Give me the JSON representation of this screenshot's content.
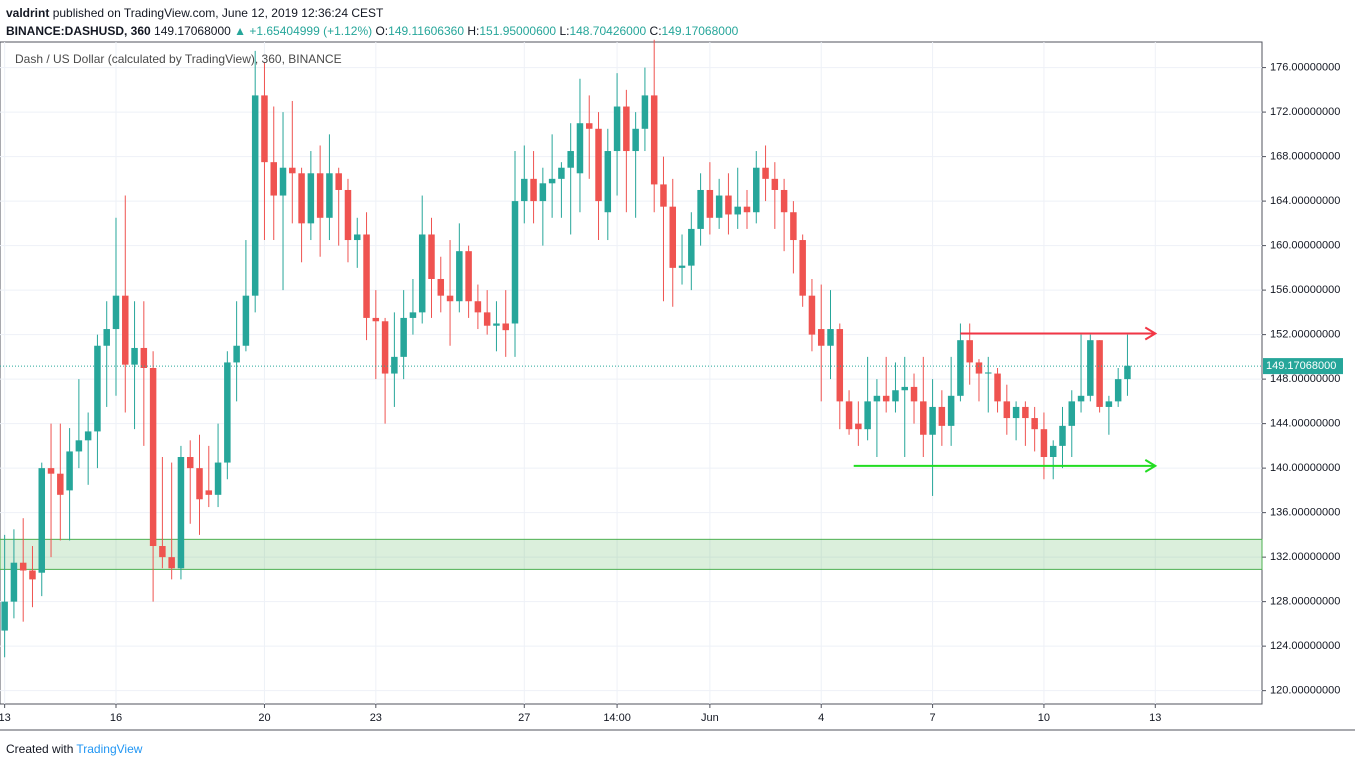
{
  "header": {
    "author": "valdrint",
    "published": "published on TradingView.com, June 12, 2019 12:36:24 CEST",
    "symbol": "BINANCE:DASHUSD, 360",
    "price": "149.17068000",
    "change": "▲ +1.65404999 (+1.12%)",
    "ohlc_labels": [
      "O:",
      "H:",
      "L:",
      "C:"
    ],
    "ohlc_values": [
      "149.11606360",
      "151.95000600",
      "148.70426000",
      "149.17068000"
    ]
  },
  "footer": {
    "text": "Created with",
    "brand": "TradingView"
  },
  "chart_data": {
    "type": "candlestick",
    "title": "Dash / US Dollar (calculated by TradingView), 360, BINANCE",
    "up_color": "#26a69a",
    "down_color": "#ef5350",
    "grid": true,
    "ylim": [
      118.8,
      178.3
    ],
    "yticks": [
      {
        "value": 120,
        "label": "120.00000000"
      },
      {
        "value": 124,
        "label": "124.00000000"
      },
      {
        "value": 128,
        "label": "128.00000000"
      },
      {
        "value": 132,
        "label": "132.00000000"
      },
      {
        "value": 136,
        "label": "136.00000000"
      },
      {
        "value": 140,
        "label": "140.00000000"
      },
      {
        "value": 144,
        "label": "144.00000000"
      },
      {
        "value": 148,
        "label": "148.00000000"
      },
      {
        "value": 152,
        "label": "152.00000000"
      },
      {
        "value": 156,
        "label": "156.00000000"
      },
      {
        "value": 160,
        "label": "160.00000000"
      },
      {
        "value": 164,
        "label": "164.00000000"
      },
      {
        "value": 168,
        "label": "168.00000000"
      },
      {
        "value": 172,
        "label": "172.00000000"
      },
      {
        "value": 176,
        "label": "176.00000000"
      }
    ],
    "xlim": [
      -0.5,
      135.5
    ],
    "xticks": [
      {
        "value": 0,
        "label": "13"
      },
      {
        "value": 12,
        "label": "16"
      },
      {
        "value": 28,
        "label": "20"
      },
      {
        "value": 40,
        "label": "23"
      },
      {
        "value": 56,
        "label": "27"
      },
      {
        "value": 66,
        "label": "14:00"
      },
      {
        "value": 76,
        "label": "Jun"
      },
      {
        "value": 88,
        "label": "4"
      },
      {
        "value": 100,
        "label": "7"
      },
      {
        "value": 112,
        "label": "10"
      },
      {
        "value": 124,
        "label": "13"
      }
    ],
    "last_price": 149.17068,
    "last_price_label": "149.17068000",
    "zone": {
      "color": "#4caf50",
      "low": 130.9,
      "high": 133.6
    },
    "lines": [
      {
        "color": "#f23645",
        "value": 152.1,
        "from": 103,
        "to": 124
      },
      {
        "color": "#22dd22",
        "value": 140.2,
        "from": 91.5,
        "to": 124
      }
    ],
    "candles": [
      [
        125.4,
        134,
        123,
        128
      ],
      [
        128,
        134.5,
        126.5,
        131.5
      ],
      [
        131.5,
        135.5,
        126.2,
        130.8
      ],
      [
        130.8,
        133,
        127.5,
        130
      ],
      [
        130.6,
        140.5,
        128.5,
        140
      ],
      [
        140,
        144,
        132,
        139.5
      ],
      [
        139.5,
        144,
        133.5,
        137.6
      ],
      [
        138,
        143.6,
        133.5,
        141.5
      ],
      [
        141.5,
        148,
        140,
        142.5
      ],
      [
        142.5,
        145,
        138.5,
        143.3
      ],
      [
        143.3,
        152,
        140,
        151
      ],
      [
        151,
        155,
        145.5,
        152.5
      ],
      [
        152.5,
        162.5,
        146.5,
        155.5
      ],
      [
        155.5,
        164.5,
        145,
        149.3
      ],
      [
        149.3,
        155,
        143.5,
        150.8
      ],
      [
        150.8,
        155,
        142,
        149
      ],
      [
        149,
        150.5,
        128,
        133
      ],
      [
        133,
        141,
        131,
        132
      ],
      [
        132,
        140.5,
        130,
        131
      ],
      [
        131,
        142,
        130,
        141
      ],
      [
        141,
        142.5,
        135,
        140
      ],
      [
        140,
        143,
        134,
        137.2
      ],
      [
        138,
        142,
        136.5,
        137.6
      ],
      [
        137.6,
        144,
        136.5,
        140.5
      ],
      [
        140.5,
        150.5,
        139,
        149.5
      ],
      [
        149.5,
        155,
        146,
        151
      ],
      [
        151,
        160.5,
        150.5,
        155.5
      ],
      [
        155.5,
        177.5,
        154,
        173.5
      ],
      [
        173.5,
        176.5,
        160.5,
        167.5
      ],
      [
        167.5,
        172.5,
        160.5,
        164.5
      ],
      [
        164.5,
        172,
        156,
        167
      ],
      [
        167,
        173,
        162,
        166.5
      ],
      [
        166.5,
        167,
        158.5,
        162
      ],
      [
        162,
        168.5,
        160.5,
        166.5
      ],
      [
        166.5,
        169,
        159,
        162.5
      ],
      [
        162.5,
        170,
        160.5,
        166.5
      ],
      [
        166.5,
        167,
        160,
        165
      ],
      [
        165,
        166,
        158.5,
        160.5
      ],
      [
        160.5,
        162.5,
        158,
        161
      ],
      [
        161,
        163,
        151.5,
        153.5
      ],
      [
        153.5,
        156,
        148,
        153.2
      ],
      [
        153.2,
        153.5,
        144,
        148.5
      ],
      [
        148.5,
        154,
        145.5,
        150
      ],
      [
        150,
        156,
        148,
        153.5
      ],
      [
        153.5,
        157,
        152,
        154
      ],
      [
        154,
        164.5,
        153,
        161
      ],
      [
        161,
        162.5,
        153.5,
        157
      ],
      [
        157,
        159,
        154,
        155.5
      ],
      [
        155.5,
        160.5,
        151,
        155
      ],
      [
        155,
        162,
        154,
        159.5
      ],
      [
        159.5,
        160,
        153.5,
        155
      ],
      [
        155,
        156.5,
        152.5,
        154
      ],
      [
        154,
        156,
        152,
        152.8
      ],
      [
        152.8,
        155,
        150.5,
        153
      ],
      [
        153,
        156,
        150,
        152.4
      ],
      [
        153,
        168.5,
        150,
        164
      ],
      [
        164,
        169,
        162,
        166
      ],
      [
        166,
        168.5,
        162,
        164
      ],
      [
        164,
        167,
        160,
        165.6
      ],
      [
        165.6,
        170,
        162.5,
        166
      ],
      [
        166,
        167.5,
        162.5,
        167
      ],
      [
        167,
        171,
        161,
        168.5
      ],
      [
        166.5,
        175,
        163,
        171
      ],
      [
        171,
        173.5,
        166,
        170.5
      ],
      [
        170.5,
        172,
        160.5,
        164
      ],
      [
        163,
        170.5,
        160.5,
        168.5
      ],
      [
        168.5,
        175.5,
        164.5,
        172.5
      ],
      [
        172.5,
        174,
        163,
        168.5
      ],
      [
        168.5,
        172,
        162.5,
        170.5
      ],
      [
        170.5,
        176,
        168.5,
        173.5
      ],
      [
        173.5,
        178.5,
        163,
        165.5
      ],
      [
        165.5,
        168,
        155,
        163.5
      ],
      [
        163.5,
        166,
        154.5,
        158
      ],
      [
        158,
        161,
        156.5,
        158.2
      ],
      [
        158.2,
        163,
        156,
        161.5
      ],
      [
        161.5,
        166.5,
        160,
        165
      ],
      [
        165,
        167.5,
        161,
        162.5
      ],
      [
        162.5,
        166,
        161.5,
        164.5
      ],
      [
        164.5,
        166.5,
        161,
        162.8
      ],
      [
        162.8,
        167,
        161.5,
        163.5
      ],
      [
        163.5,
        165,
        161.5,
        163
      ],
      [
        163,
        168.5,
        162,
        167
      ],
      [
        167,
        169,
        164,
        166
      ],
      [
        166,
        167.5,
        161.5,
        165
      ],
      [
        165,
        166,
        159.5,
        163
      ],
      [
        163,
        164,
        157.5,
        160.5
      ],
      [
        160.5,
        161,
        154.5,
        155.5
      ],
      [
        155.5,
        157,
        150.5,
        152
      ],
      [
        152.5,
        156.5,
        146,
        151
      ],
      [
        151,
        156,
        148,
        152.5
      ],
      [
        152.5,
        153,
        143.5,
        146
      ],
      [
        146,
        147,
        143,
        143.5
      ],
      [
        144,
        146,
        142,
        143.5
      ],
      [
        143.5,
        150,
        142.5,
        146
      ],
      [
        146,
        148,
        141,
        146.5
      ],
      [
        146.5,
        150,
        145,
        146
      ],
      [
        146,
        149.5,
        145,
        147
      ],
      [
        147,
        150,
        141,
        147.3
      ],
      [
        147.3,
        148.5,
        144,
        146
      ],
      [
        146,
        150,
        141,
        143
      ],
      [
        143,
        148,
        137.5,
        145.5
      ],
      [
        145.5,
        147,
        142,
        143.8
      ],
      [
        143.8,
        150,
        142,
        146.5
      ],
      [
        146.5,
        153,
        146,
        151.5
      ],
      [
        151.5,
        153,
        147.5,
        149.5
      ],
      [
        149.5,
        149.8,
        146,
        148.5
      ],
      [
        148.5,
        150,
        145,
        148.6
      ],
      [
        148.5,
        149,
        145,
        146
      ],
      [
        146,
        147.5,
        143,
        144.5
      ],
      [
        144.5,
        146,
        142.5,
        145.5
      ],
      [
        145.5,
        146,
        142,
        144.5
      ],
      [
        144.5,
        145.5,
        141.5,
        143.5
      ],
      [
        143.5,
        145,
        139,
        141
      ],
      [
        141,
        142.5,
        139,
        142
      ],
      [
        142,
        145.5,
        140,
        143.8
      ],
      [
        143.8,
        147,
        141,
        146
      ],
      [
        146,
        152,
        145,
        146.5
      ],
      [
        146.5,
        152,
        146,
        151.5
      ],
      [
        151.5,
        151.5,
        145,
        145.5
      ],
      [
        145.5,
        146.5,
        143,
        146
      ],
      [
        146,
        149,
        145.5,
        148
      ],
      [
        148,
        152,
        146.5,
        149.2
      ]
    ]
  }
}
